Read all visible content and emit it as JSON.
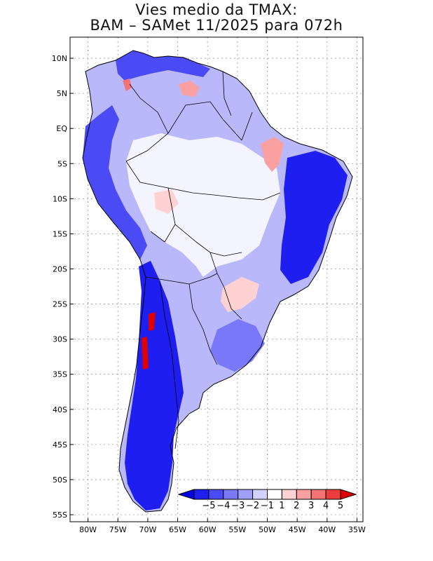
{
  "title": {
    "line1": "Vies medio da TMAX:",
    "line2": "BAM – SAMet 11/2025  para 072h"
  },
  "map": {
    "lon_range": [
      -83,
      -34
    ],
    "lat_range": [
      -56,
      13
    ],
    "lat_ticks": [
      {
        "value": 10,
        "label": "10N"
      },
      {
        "value": 5,
        "label": "5N"
      },
      {
        "value": 0,
        "label": "EQ"
      },
      {
        "value": -5,
        "label": "5S"
      },
      {
        "value": -10,
        "label": "10S"
      },
      {
        "value": -15,
        "label": "15S"
      },
      {
        "value": -20,
        "label": "20S"
      },
      {
        "value": -25,
        "label": "25S"
      },
      {
        "value": -30,
        "label": "30S"
      },
      {
        "value": -35,
        "label": "35S"
      },
      {
        "value": -40,
        "label": "40S"
      },
      {
        "value": -45,
        "label": "45S"
      },
      {
        "value": -50,
        "label": "50S"
      },
      {
        "value": -55,
        "label": "55S"
      }
    ],
    "lon_ticks": [
      {
        "value": -80,
        "label": "80W"
      },
      {
        "value": -75,
        "label": "75W"
      },
      {
        "value": -70,
        "label": "70W"
      },
      {
        "value": -65,
        "label": "65W"
      },
      {
        "value": -60,
        "label": "60W"
      },
      {
        "value": -55,
        "label": "55W"
      },
      {
        "value": -50,
        "label": "50W"
      },
      {
        "value": -45,
        "label": "45W"
      },
      {
        "value": -40,
        "label": "40W"
      },
      {
        "value": -35,
        "label": "35W"
      }
    ],
    "gridlines": true
  },
  "colorbar": {
    "labels": [
      "-5",
      "-4",
      "-3",
      "-2",
      "-1",
      "1",
      "2",
      "3",
      "4",
      "5"
    ],
    "colors": [
      "#1e1ef0",
      "#4b4bf5",
      "#7878f8",
      "#a0a0fb",
      "#d2d2fe",
      "#ffffff",
      "#fed2d2",
      "#fba0a0",
      "#f57373",
      "#ee3b3b"
    ],
    "under_color": "#0000e0",
    "over_color": "#e00000"
  }
}
